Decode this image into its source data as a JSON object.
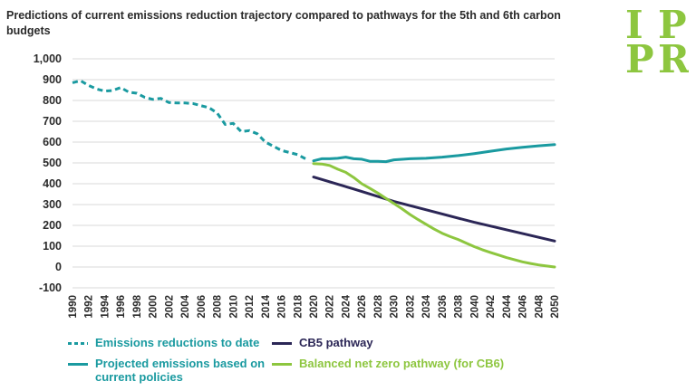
{
  "title": "Predictions of current emissions reduction trajectory compared to pathways for the 5th and 6th carbon budgets",
  "logo": {
    "text": "IPPR",
    "color": "#8dc63f"
  },
  "chart_data": {
    "type": "line",
    "title": "Predictions of current emissions reduction trajectory compared to pathways for the 5th and 6th carbon budgets",
    "xlabel": "",
    "ylabel": "",
    "xlim": [
      1990,
      2050
    ],
    "ylim": [
      -100,
      1000
    ],
    "x_ticks": [
      "1990",
      "1992",
      "1994",
      "1996",
      "1998",
      "2000",
      "2002",
      "2004",
      "2006",
      "2008",
      "2010",
      "2012",
      "2014",
      "2016",
      "2018",
      "2020",
      "2022",
      "2024",
      "2026",
      "2028",
      "2030",
      "2032",
      "2034",
      "2036",
      "2038",
      "2040",
      "2042",
      "2044",
      "2046",
      "2048",
      "2050"
    ],
    "y_ticks": [
      "1,000",
      "900",
      "800",
      "700",
      "600",
      "500",
      "400",
      "300",
      "200",
      "100",
      "0",
      "-100"
    ],
    "y_tick_values": [
      1000,
      900,
      800,
      700,
      600,
      500,
      400,
      300,
      200,
      100,
      0,
      -100
    ],
    "grid": true,
    "legend_position": "bottom",
    "series": [
      {
        "name": "Emissions reductions to date",
        "color": "#1a9aa0",
        "dashed": true,
        "x": [
          1990,
          1991,
          1992,
          1993,
          1994,
          1995,
          1996,
          1997,
          1998,
          1999,
          2000,
          2001,
          2002,
          2003,
          2004,
          2005,
          2006,
          2007,
          2008,
          2009,
          2010,
          2011,
          2012,
          2013,
          2014,
          2015,
          2016,
          2017,
          2018,
          2019
        ],
        "y": [
          885,
          895,
          872,
          855,
          845,
          848,
          862,
          840,
          835,
          815,
          805,
          810,
          790,
          788,
          788,
          785,
          775,
          765,
          740,
          685,
          690,
          650,
          655,
          640,
          600,
          580,
          560,
          550,
          540,
          520
        ]
      },
      {
        "name": "CB5 pathway",
        "color": "#2b2656",
        "dashed": false,
        "x": [
          2020,
          2025,
          2030,
          2035,
          2040,
          2045,
          2050
        ],
        "y": [
          432,
          375,
          315,
          265,
          215,
          170,
          125
        ]
      },
      {
        "name": "Projected emissions based on current policies",
        "color": "#1a9aa0",
        "dashed": false,
        "x": [
          2020,
          2021,
          2022,
          2023,
          2024,
          2025,
          2026,
          2027,
          2028,
          2029,
          2030,
          2032,
          2034,
          2036,
          2038,
          2040,
          2042,
          2044,
          2046,
          2048,
          2050
        ],
        "y": [
          510,
          520,
          520,
          522,
          528,
          520,
          518,
          508,
          508,
          506,
          515,
          520,
          522,
          528,
          535,
          545,
          556,
          567,
          575,
          582,
          588
        ]
      },
      {
        "name": "Balanced net zero pathway (for CB6)",
        "color": "#8dc63f",
        "dashed": false,
        "x": [
          2020,
          2021,
          2022,
          2023,
          2024,
          2025,
          2026,
          2027,
          2028,
          2029,
          2030,
          2031,
          2032,
          2033,
          2034,
          2035,
          2036,
          2037,
          2038,
          2039,
          2040,
          2041,
          2042,
          2043,
          2044,
          2045,
          2046,
          2047,
          2048,
          2049,
          2050
        ],
        "y": [
          497,
          495,
          488,
          470,
          455,
          430,
          400,
          378,
          355,
          330,
          305,
          280,
          252,
          228,
          205,
          182,
          162,
          146,
          132,
          115,
          98,
          83,
          70,
          58,
          45,
          35,
          25,
          17,
          10,
          5,
          0
        ]
      }
    ]
  },
  "legend": [
    {
      "label": "Emissions reductions to date",
      "color": "#1a9aa0",
      "dashed": true
    },
    {
      "label": "CB5 pathway",
      "color": "#2b2656",
      "dashed": false
    },
    {
      "label": "Projected emissions based on current policies",
      "color": "#1a9aa0",
      "dashed": false
    },
    {
      "label": "Balanced net zero pathway (for CB6)",
      "color": "#8dc63f",
      "dashed": false
    }
  ]
}
